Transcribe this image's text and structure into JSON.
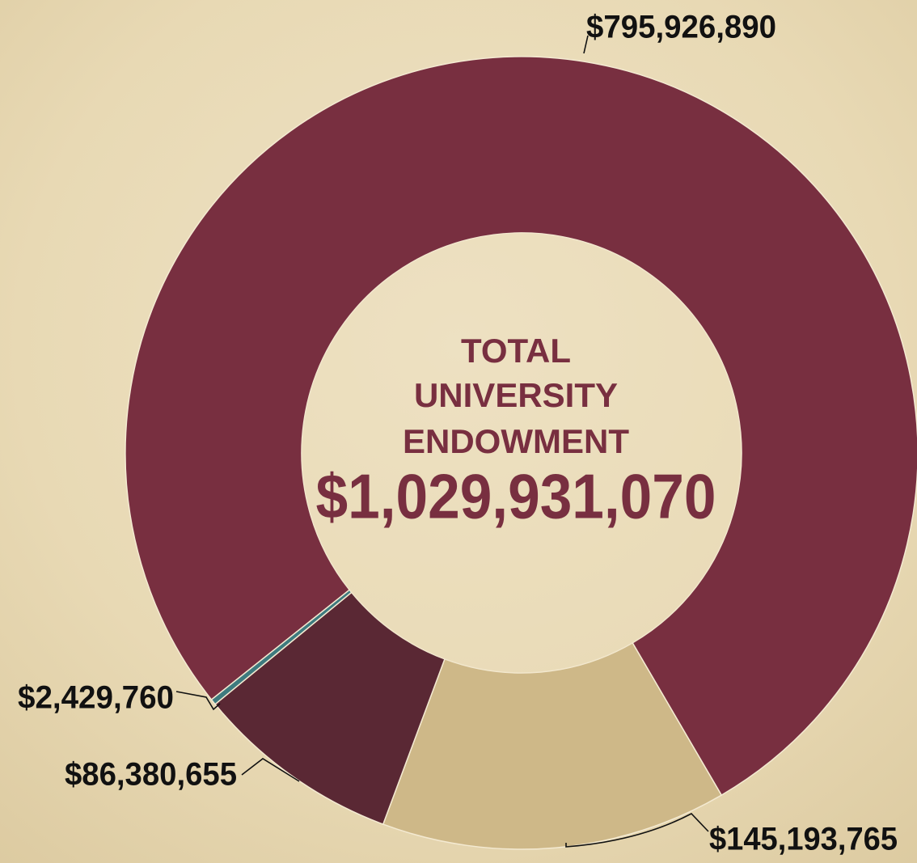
{
  "chart_data": {
    "type": "donut",
    "center_text": [
      "TOTAL",
      "UNIVERSITY",
      "ENDOWMENT"
    ],
    "center_total": "$1,029,931,070",
    "values": [
      795926890,
      145193765,
      86380655,
      2429760
    ],
    "value_labels": [
      "$795,926,890",
      "$145,193,765",
      "$86,380,655",
      "$2,429,760"
    ],
    "colors": [
      "#782f40",
      "#ceb888",
      "#5a2834",
      "#3e7b7f"
    ]
  }
}
